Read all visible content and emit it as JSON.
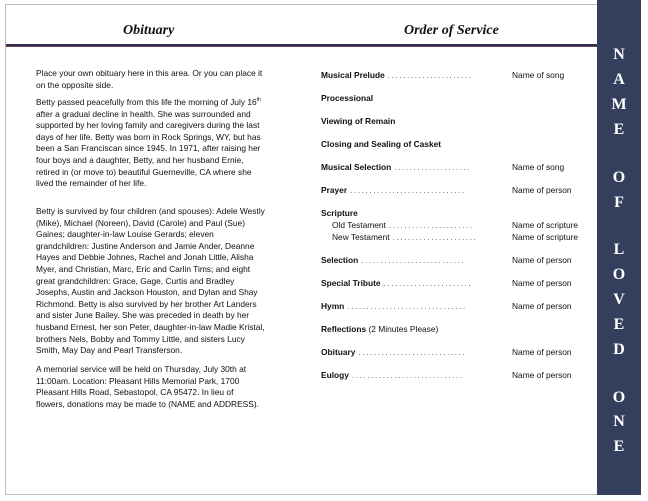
{
  "headers": {
    "obituary": "Obituary",
    "service": "Order of Service"
  },
  "sidebar": {
    "title_letters": [
      "N",
      "A",
      "M",
      "E",
      "O",
      "F",
      "L",
      "O",
      "V",
      "E",
      "D",
      "O",
      "N",
      "E"
    ],
    "color": "#333f5c"
  },
  "obituary": {
    "paragraphs": [
      [
        "Place your own obituary here in this area. Or you can place it",
        "on the opposite side."
      ],
      [
        "Betty passed peacefully from this life the morning of July 16th",
        "after a gradual decline in health.  She was surrounded and",
        "supported by her loving family and caregivers during the last",
        "days of her life.  Betty was born in Rock Springs, WY, but has",
        "been a San Franciscan since 1945.  In 1971, after raising her",
        "four boys and a daughter, Betty, and her husband Ernie,",
        "retired in (or move to) beautiful Guerneville, CA where she",
        "lived the remainder of her life."
      ],
      [
        "Betty is survived by four children (and spouses): Adele Westly",
        "(Mike), Michael (Noreen), David (Carole) and Paul (Sue)",
        "Gaines;  daughter-in-law Louise Gerards;  eleven",
        "grandchildren: Justine Anderson and Jamie Ander, Deanne",
        "Hayes and Debbie Johnes, Rachel and Jonah Little, Alisha",
        "Myer, and Christian, Marc, Eric and Carlin Tims;  and eight",
        "great grandchildren: Grace, Gage, Curtis and Bradley",
        "Josephs, Austin and Jackson Houston, and Dylan and Shay",
        "Richmond.  Betty is also survived by her brother Art Landers",
        "and sister June Bailey.  She was preceded in death by her",
        "husband Ernest, her son Peter, daughter-in-law Madie Kristal,",
        "brothers Nels, Bobby and Tommy Little, and sisters Lucy",
        "Smith, May Day and Pearl Transferson."
      ],
      [
        "A memorial service will be held on Thursday, July 30th at",
        "11:00am.  Location:  Pleasant Hills Memorial Park, 1700",
        "Pleasant Hills Road, Sebastopol, CA 95472.  In lieu of",
        "flowers, donations may be made to (NAME and ADDRESS)."
      ]
    ]
  },
  "service": [
    {
      "label": "Musical Prelude",
      "dots": ". . . . . . . . . . . . . . . . .  . . . . .",
      "value": "Name of song"
    },
    {
      "label": "Processional"
    },
    {
      "label": "Viewing of Remain"
    },
    {
      "label": "Closing and Sealing of Casket"
    },
    {
      "label": "Musical Selection",
      "dots": ". . . . . . . . . . . . . . . . . . . .",
      "value": "Name of song"
    },
    {
      "label": "Prayer",
      "dots": ". . . . . . . . . . . . . . . . . . . . . . . . . . . . . .",
      "value": "Name of person"
    },
    {
      "label": "Scripture"
    },
    {
      "label": "Old Testament",
      "sub": true,
      "dots": ". . . . . . . . . . . . . . . . . . . . . .",
      "value": "Name of scripture"
    },
    {
      "label": "New Testament",
      "sub": true,
      "dots": ". . . . . . . . . . . . . . . . . . . . . .",
      "value": "Name of scripture"
    },
    {
      "label": "Selection",
      "dots": ". . . . . . . . . . . . . . . . . . . . . . . . . . .",
      "value": "Name of person"
    },
    {
      "label": "Special Tribute",
      "dots": ". . . . . . . . . . . . . . . . . . . . . . .",
      "value": "Name of person"
    },
    {
      "label": "Hymn",
      "dots": ". . . . . . . . . . . . . . . . . . . . . . . . . . . . . . .",
      "value": "Name of person"
    },
    {
      "label": "Reflections",
      "note": " (2 Minutes Please)"
    },
    {
      "label": "Obituary",
      "dots": ". . . . . . . . . . . . . . . . . . . . . . . . . . . .",
      "value": "Name of person"
    },
    {
      "label": "Eulogy",
      "dots": ". . . . . . . . . . . . . . . . . . . . . . . . . . . . .",
      "value": "Name of person"
    }
  ]
}
